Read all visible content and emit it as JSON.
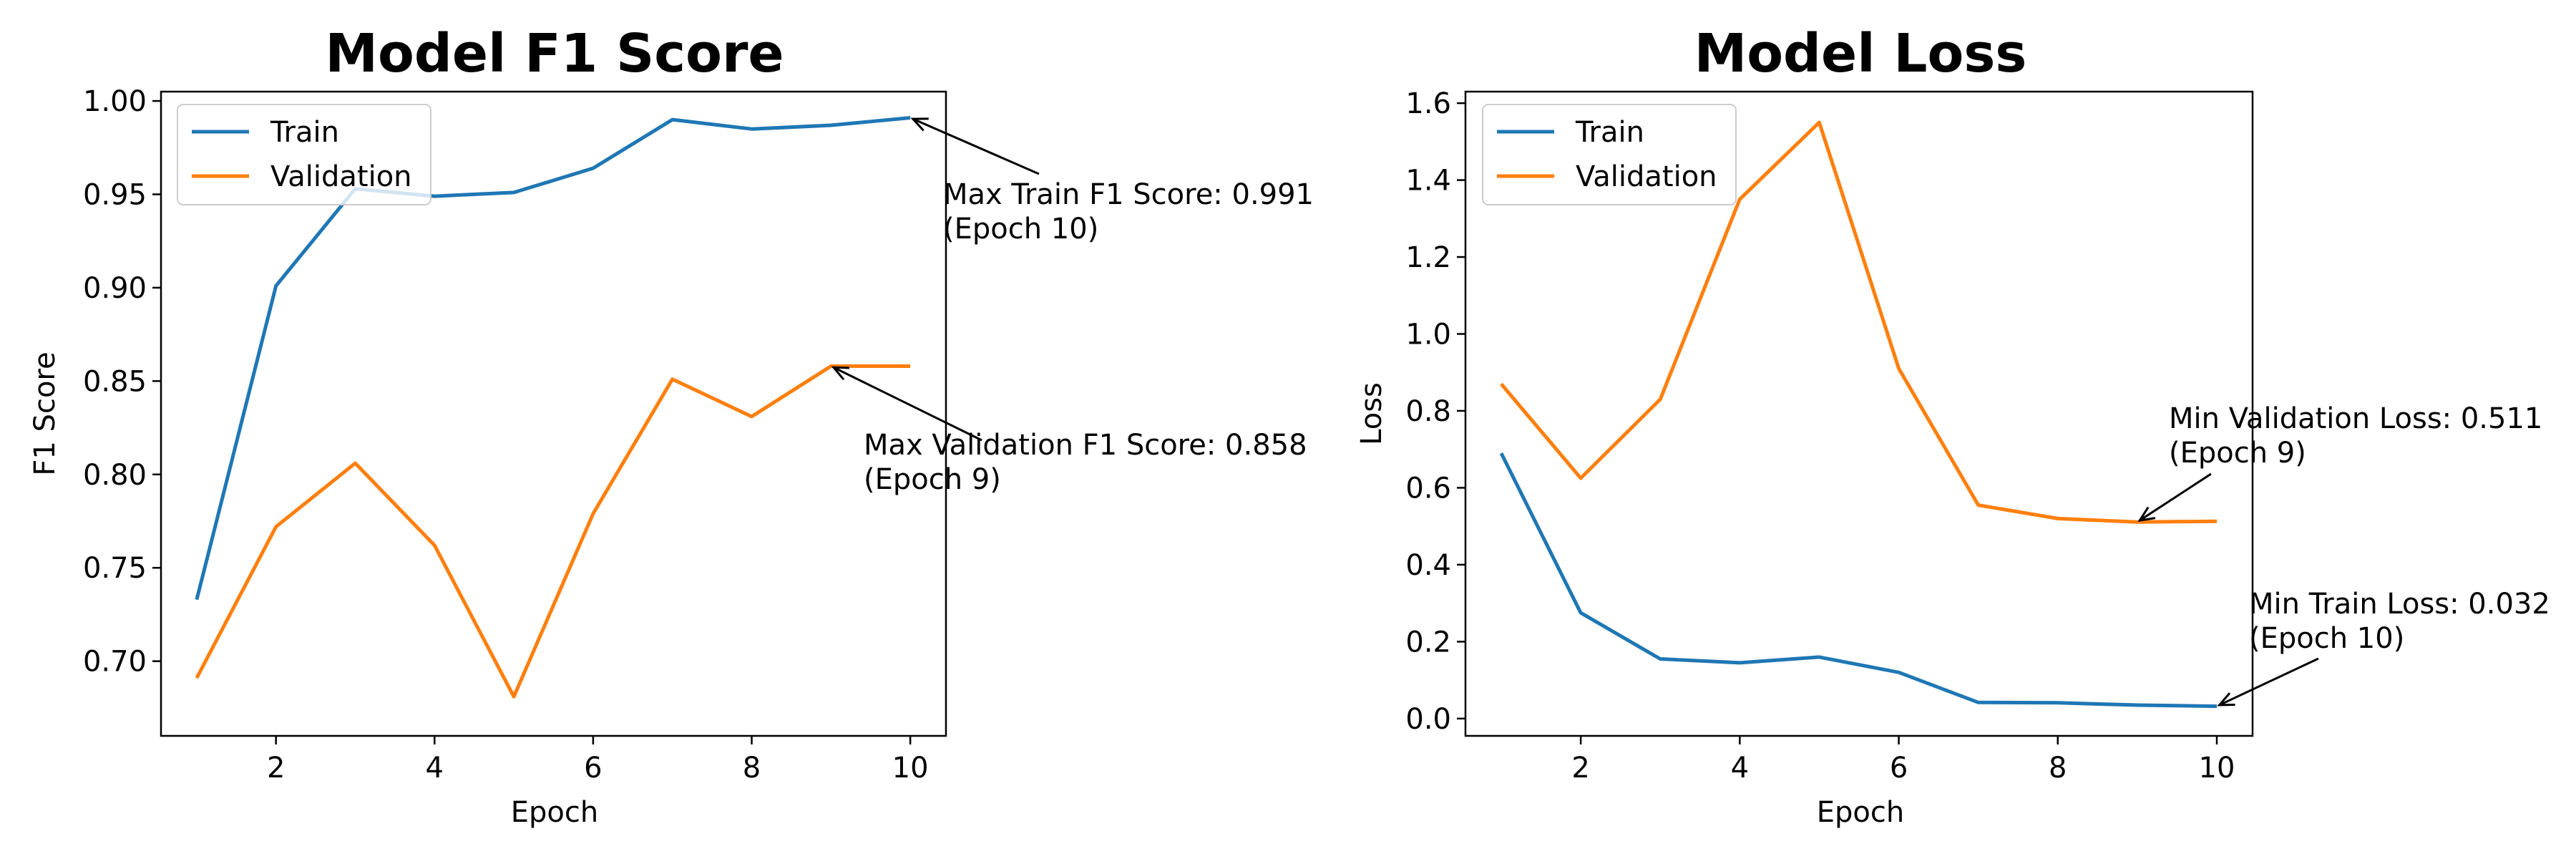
{
  "colors": {
    "train": "#1f77b4",
    "validation": "#ff7f0e",
    "axis": "#000000",
    "background": "#ffffff"
  },
  "chart_data": [
    {
      "type": "line",
      "title": "Model F1 Score",
      "xlabel": "Epoch",
      "ylabel": "F1 Score",
      "xlim": [
        0.55,
        10.45
      ],
      "ylim": [
        0.66,
        1.005
      ],
      "xticks": [
        2,
        4,
        6,
        8,
        10
      ],
      "xtick_labels": [
        "2",
        "4",
        "6",
        "8",
        "10"
      ],
      "yticks": [
        0.7,
        0.75,
        0.8,
        0.85,
        0.9,
        0.95,
        1.0
      ],
      "ytick_labels": [
        "0.70",
        "0.75",
        "0.80",
        "0.85",
        "0.90",
        "0.95",
        "1.00"
      ],
      "legend": {
        "position": "upper-left",
        "entries": [
          "Train",
          "Validation"
        ]
      },
      "x": [
        1,
        2,
        3,
        4,
        5,
        6,
        7,
        8,
        9,
        10
      ],
      "series": [
        {
          "name": "Train",
          "color": "#1f77b4",
          "values": [
            0.733,
            0.901,
            0.953,
            0.949,
            0.951,
            0.964,
            0.99,
            0.985,
            0.987,
            0.991
          ]
        },
        {
          "name": "Validation",
          "color": "#ff7f0e",
          "values": [
            0.691,
            0.772,
            0.806,
            0.762,
            0.681,
            0.779,
            0.851,
            0.831,
            0.858,
            0.858
          ]
        }
      ],
      "annotations": [
        {
          "lines": [
            "Max Train F1 Score: 0.991",
            "(Epoch 10)"
          ],
          "point": [
            10,
            0.991
          ]
        },
        {
          "lines": [
            "Max Validation F1 Score: 0.858",
            "(Epoch 9)"
          ],
          "point": [
            9,
            0.858
          ]
        }
      ]
    },
    {
      "type": "line",
      "title": "Model Loss",
      "xlabel": "Epoch",
      "ylabel": "Loss",
      "xlim": [
        0.55,
        10.45
      ],
      "ylim": [
        -0.045,
        1.63
      ],
      "xticks": [
        2,
        4,
        6,
        8,
        10
      ],
      "xtick_labels": [
        "2",
        "4",
        "6",
        "8",
        "10"
      ],
      "yticks": [
        0.0,
        0.2,
        0.4,
        0.6,
        0.8,
        1.0,
        1.2,
        1.4,
        1.6
      ],
      "ytick_labels": [
        "0.0",
        "0.2",
        "0.4",
        "0.6",
        "0.8",
        "1.0",
        "1.2",
        "1.4",
        "1.6"
      ],
      "legend": {
        "position": "upper-left",
        "entries": [
          "Train",
          "Validation"
        ]
      },
      "x": [
        1,
        2,
        3,
        4,
        5,
        6,
        7,
        8,
        9,
        10
      ],
      "series": [
        {
          "name": "Train",
          "color": "#1f77b4",
          "values": [
            0.69,
            0.275,
            0.155,
            0.145,
            0.16,
            0.12,
            0.042,
            0.041,
            0.035,
            0.032
          ]
        },
        {
          "name": "Validation",
          "color": "#ff7f0e",
          "values": [
            0.87,
            0.625,
            0.83,
            1.35,
            1.55,
            0.91,
            0.555,
            0.52,
            0.511,
            0.513
          ]
        }
      ],
      "annotations": [
        {
          "lines": [
            "Min Validation Loss: 0.511",
            "(Epoch 9)"
          ],
          "point": [
            9,
            0.511
          ]
        },
        {
          "lines": [
            "Min Train Loss: 0.032",
            "(Epoch 10)"
          ],
          "point": [
            10,
            0.032
          ]
        }
      ]
    }
  ]
}
